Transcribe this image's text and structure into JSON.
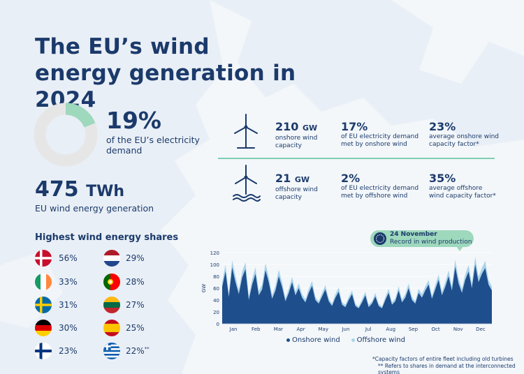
{
  "title": "The EU’s wind energy generation in 2024",
  "demand_share": {
    "value": "19%",
    "fraction": 0.19,
    "text": "of the EU’s electricity demand"
  },
  "generation": {
    "value": "475",
    "unit": "TWh",
    "text": "EU wind energy generation"
  },
  "onshore": {
    "capacity_value": "210",
    "capacity_unit": "GW",
    "capacity_text": "onshore wind capacity",
    "demand_value": "17%",
    "demand_text": "of EU electricity demand met by onshore wind",
    "factor_value": "23%",
    "factor_text": "average onshore wind capacity factor*"
  },
  "offshore": {
    "capacity_value": "21",
    "capacity_unit": "GW",
    "capacity_text": "offshore wind capacity",
    "demand_value": "2%",
    "demand_text": "of EU electricity demand met by offshore wind",
    "factor_value": "35%",
    "factor_text": "average offshore wind capacity factor*"
  },
  "shares": {
    "title": "Highest wind energy shares",
    "items": [
      {
        "country": "denmark",
        "value": "56%"
      },
      {
        "country": "netherlands",
        "value": "29%"
      },
      {
        "country": "ireland",
        "value": "33%"
      },
      {
        "country": "portugal",
        "value": "28%"
      },
      {
        "country": "sweden",
        "value": "31%"
      },
      {
        "country": "lithuania",
        "value": "27%"
      },
      {
        "country": "germany",
        "value": "30%"
      },
      {
        "country": "spain",
        "value": "25%"
      },
      {
        "country": "finland",
        "value": "23%"
      },
      {
        "country": "greece",
        "value": "22%",
        "note": "**"
      }
    ]
  },
  "callout": {
    "date": "24 November",
    "text": "Record in wind production"
  },
  "footnotes": [
    "*Capacity factors of entire fleet including old turbines",
    "** Refers to shares in demand at the interconnected systems"
  ],
  "colors": {
    "navy": "#1b3a6b",
    "onshore": "#1f4e8c",
    "offshore": "#a9d3ea",
    "accent_green": "#9ed8bd",
    "donut_track": "#e6e6e6"
  },
  "chart_data": {
    "type": "area",
    "ylabel": "GW",
    "ylim": [
      0,
      120
    ],
    "yticks": [
      0,
      10,
      20,
      30,
      40,
      50,
      60,
      70,
      80,
      90,
      100,
      110,
      120
    ],
    "xlabels": [
      "Jan",
      "Feb",
      "Mar",
      "Apr",
      "May",
      "Jun",
      "Jul",
      "Aug",
      "Sep",
      "Oct",
      "Nov",
      "Dec"
    ],
    "series": [
      {
        "name": "Onshore wind",
        "color": "#1f4e8c",
        "values": [
          62,
          88,
          45,
          95,
          70,
          50,
          78,
          92,
          40,
          66,
          84,
          48,
          58,
          90,
          70,
          42,
          56,
          80,
          62,
          38,
          52,
          70,
          48,
          60,
          44,
          36,
          52,
          64,
          40,
          34,
          46,
          58,
          38,
          30,
          44,
          54,
          32,
          28,
          40,
          50,
          30,
          26,
          36,
          48,
          28,
          34,
          46,
          30,
          26,
          40,
          52,
          32,
          38,
          56,
          36,
          44,
          60,
          40,
          34,
          52,
          44,
          56,
          66,
          42,
          58,
          74,
          48,
          62,
          80,
          56,
          96,
          68,
          52,
          74,
          88,
          60,
          100,
          70,
          84,
          94,
          66,
          56
        ]
      },
      {
        "name": "Offshore wind",
        "color": "#a9d3ea",
        "values": [
          8,
          12,
          6,
          12,
          10,
          7,
          10,
          12,
          6,
          9,
          11,
          7,
          8,
          12,
          9,
          6,
          8,
          11,
          8,
          5,
          7,
          9,
          6,
          8,
          6,
          5,
          7,
          8,
          5,
          4,
          6,
          7,
          5,
          4,
          6,
          7,
          4,
          4,
          5,
          6,
          4,
          3,
          5,
          6,
          4,
          4,
          6,
          4,
          3,
          5,
          7,
          4,
          5,
          7,
          5,
          6,
          8,
          5,
          4,
          7,
          6,
          7,
          8,
          5,
          7,
          9,
          6,
          8,
          10,
          7,
          12,
          9,
          7,
          9,
          11,
          8,
          13,
          9,
          10,
          12,
          8,
          7
        ]
      }
    ]
  }
}
